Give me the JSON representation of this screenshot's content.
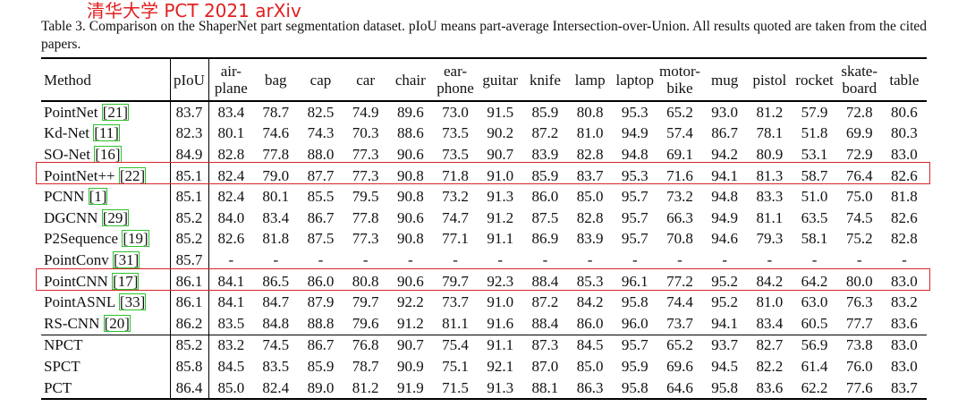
{
  "watermark": "清华大学  PCT 2021 arXiv",
  "caption": "Table 3. Comparison on the ShaperNet part segmentation dataset. pIoU means part-average Intersection-over-Union. All results quoted are taken from the cited papers.",
  "columns": [
    {
      "line1": "Method",
      "line2": ""
    },
    {
      "line1": "pIoU",
      "line2": ""
    },
    {
      "line1": "air-",
      "line2": "plane"
    },
    {
      "line1": "bag",
      "line2": ""
    },
    {
      "line1": "cap",
      "line2": ""
    },
    {
      "line1": "car",
      "line2": ""
    },
    {
      "line1": "chair",
      "line2": ""
    },
    {
      "line1": "ear-",
      "line2": "phone"
    },
    {
      "line1": "guitar",
      "line2": ""
    },
    {
      "line1": "knife",
      "line2": ""
    },
    {
      "line1": "lamp",
      "line2": ""
    },
    {
      "line1": "laptop",
      "line2": ""
    },
    {
      "line1": "motor-",
      "line2": "bike"
    },
    {
      "line1": "mug",
      "line2": ""
    },
    {
      "line1": "pistol",
      "line2": ""
    },
    {
      "line1": "rocket",
      "line2": ""
    },
    {
      "line1": "skate-",
      "line2": "board"
    },
    {
      "line1": "table",
      "line2": ""
    }
  ],
  "rows": [
    {
      "method": "PointNet ",
      "ref": "[21]",
      "piou": "83.7",
      "vals": [
        "83.4",
        "78.7",
        "82.5",
        "74.9",
        "89.6",
        "73.0",
        "91.5",
        "85.9",
        "80.8",
        "95.3",
        "65.2",
        "93.0",
        "81.2",
        "57.9",
        "72.8",
        "80.6"
      ],
      "bold": []
    },
    {
      "method": "Kd-Net ",
      "ref": "[11]",
      "piou": "82.3",
      "vals": [
        "80.1",
        "74.6",
        "74.3",
        "70.3",
        "88.6",
        "73.5",
        "90.2",
        "87.2",
        "81.0",
        "94.9",
        "57.4",
        "86.7",
        "78.1",
        "51.8",
        "69.9",
        "80.3"
      ],
      "bold": []
    },
    {
      "method": "SO-Net ",
      "ref": "[16]",
      "piou": "84.9",
      "vals": [
        "82.8",
        "77.8",
        "88.0",
        "77.3",
        "90.6",
        "73.5",
        "90.7",
        "83.9",
        "82.8",
        "94.8",
        "69.1",
        "94.2",
        "80.9",
        "53.1",
        "72.9",
        "83.0"
      ],
      "bold": []
    },
    {
      "method": "PointNet++ ",
      "ref": "[22]",
      "piou": "85.1",
      "vals": [
        "82.4",
        "79.0",
        "87.7",
        "77.3",
        "90.8",
        "71.8",
        "91.0",
        "85.9",
        "83.7",
        "95.3",
        "71.6",
        "94.1",
        "81.3",
        "58.7",
        "76.4",
        "82.6"
      ],
      "bold": []
    },
    {
      "method": "PCNN ",
      "ref": "[1]",
      "piou": "85.1",
      "vals": [
        "82.4",
        "80.1",
        "85.5",
        "79.5",
        "90.8",
        "73.2",
        "91.3",
        "86.0",
        "85.0",
        "95.7",
        "73.2",
        "94.8",
        "83.3",
        "51.0",
        "75.0",
        "81.8"
      ],
      "bold": []
    },
    {
      "method": "DGCNN ",
      "ref": "[29]",
      "piou": "85.2",
      "vals": [
        "84.0",
        "83.4",
        "86.7",
        "77.8",
        "90.6",
        "74.7",
        "91.2",
        "87.5",
        "82.8",
        "95.7",
        "66.3",
        "94.9",
        "81.1",
        "63.5",
        "74.5",
        "82.6"
      ],
      "bold": []
    },
    {
      "method": "P2Sequence ",
      "ref": "[19]",
      "piou": "85.2",
      "vals": [
        "82.6",
        "81.8",
        "87.5",
        "77.3",
        "90.8",
        "77.1",
        "91.1",
        "86.9",
        "83.9",
        "95.7",
        "70.8",
        "94.6",
        "79.3",
        "58.1",
        "75.2",
        "82.8"
      ],
      "bold": []
    },
    {
      "method": "PointConv ",
      "ref": "[31]",
      "piou": "85.7",
      "vals": [
        "-",
        "-",
        "-",
        "-",
        "-",
        "-",
        "-",
        "-",
        "-",
        "-",
        "-",
        "-",
        "-",
        "-",
        "-",
        "-"
      ],
      "bold": []
    },
    {
      "method": "PointCNN ",
      "ref": "[17]",
      "piou": "86.1",
      "vals": [
        "84.1",
        "86.5",
        "86.0",
        "80.8",
        "90.6",
        "79.7",
        "92.3",
        "88.4",
        "85.3",
        "96.1",
        "77.2",
        "95.2",
        "84.2",
        "64.2",
        "80.0",
        "83.0"
      ],
      "bold": [
        1,
        6,
        7,
        9,
        10,
        12,
        13,
        14
      ]
    },
    {
      "method": "PointASNL ",
      "ref": "[33]",
      "piou": "86.1",
      "vals": [
        "84.1",
        "84.7",
        "87.9",
        "79.7",
        "92.2",
        "73.7",
        "91.0",
        "87.2",
        "84.2",
        "95.8",
        "74.4",
        "95.2",
        "81.0",
        "63.0",
        "76.3",
        "83.2"
      ],
      "bold": [
        4
      ]
    },
    {
      "method": "RS-CNN ",
      "ref": "[20]",
      "piou": "86.2",
      "vals": [
        "83.5",
        "84.8",
        "88.8",
        "79.6",
        "91.2",
        "81.1",
        "91.6",
        "88.4",
        "86.0",
        "96.0",
        "73.7",
        "94.1",
        "83.4",
        "60.5",
        "77.7",
        "83.6"
      ],
      "bold": [
        5,
        7
      ]
    },
    {
      "method": "NPCT",
      "ref": "",
      "piou": "85.2",
      "vals": [
        "83.2",
        "74.5",
        "86.7",
        "76.8",
        "90.7",
        "75.4",
        "91.1",
        "87.3",
        "84.5",
        "95.7",
        "65.2",
        "93.7",
        "82.7",
        "56.9",
        "73.8",
        "83.0"
      ],
      "bold": [],
      "method_bold": true
    },
    {
      "method": "SPCT",
      "ref": "",
      "piou": "85.8",
      "vals": [
        "84.5",
        "83.5",
        "85.9",
        "78.7",
        "90.9",
        "75.1",
        "92.1",
        "87.0",
        "85.0",
        "95.9",
        "69.6",
        "94.5",
        "82.2",
        "61.4",
        "76.0",
        "83.0"
      ],
      "bold": [],
      "method_bold": true
    },
    {
      "method": "PCT",
      "ref": "",
      "piou": "86.4",
      "vals": [
        "85.0",
        "82.4",
        "89.0",
        "81.2",
        "91.9",
        "71.5",
        "91.3",
        "88.1",
        "86.3",
        "95.8",
        "64.6",
        "95.8",
        "83.6",
        "62.2",
        "77.6",
        "83.7"
      ],
      "bold": [
        0,
        2,
        3,
        8,
        11,
        15
      ],
      "method_bold": true,
      "piou_bold": true
    }
  ],
  "highlight_color": "#d8262c",
  "ref_color": "#2ec12e"
}
